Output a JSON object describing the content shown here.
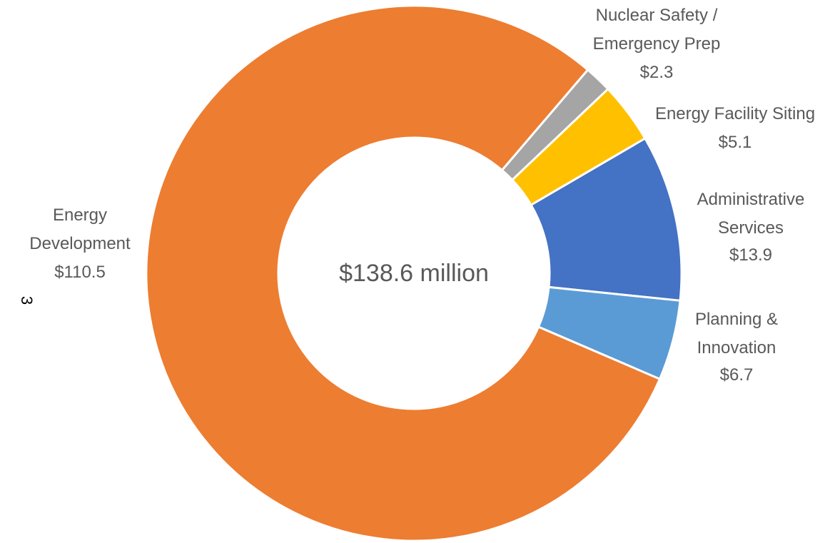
{
  "chart_data": {
    "type": "donut",
    "center_label": "$138.6 million",
    "categories": [
      "Nuclear Safety / Emergency Prep",
      "Energy Facility Siting",
      "Administrative Services",
      "Planning & Innovation",
      "Energy Development"
    ],
    "values": [
      2.3,
      5.1,
      13.9,
      6.7,
      110.5
    ],
    "value_labels": [
      "$2.3",
      "$5.1",
      "$13.9",
      "$6.7",
      "$110.5"
    ],
    "colors": [
      "#a5a5a5",
      "#ffc000",
      "#4472c4",
      "#5b9bd5",
      "#ed7d31"
    ]
  },
  "page_number": "3"
}
